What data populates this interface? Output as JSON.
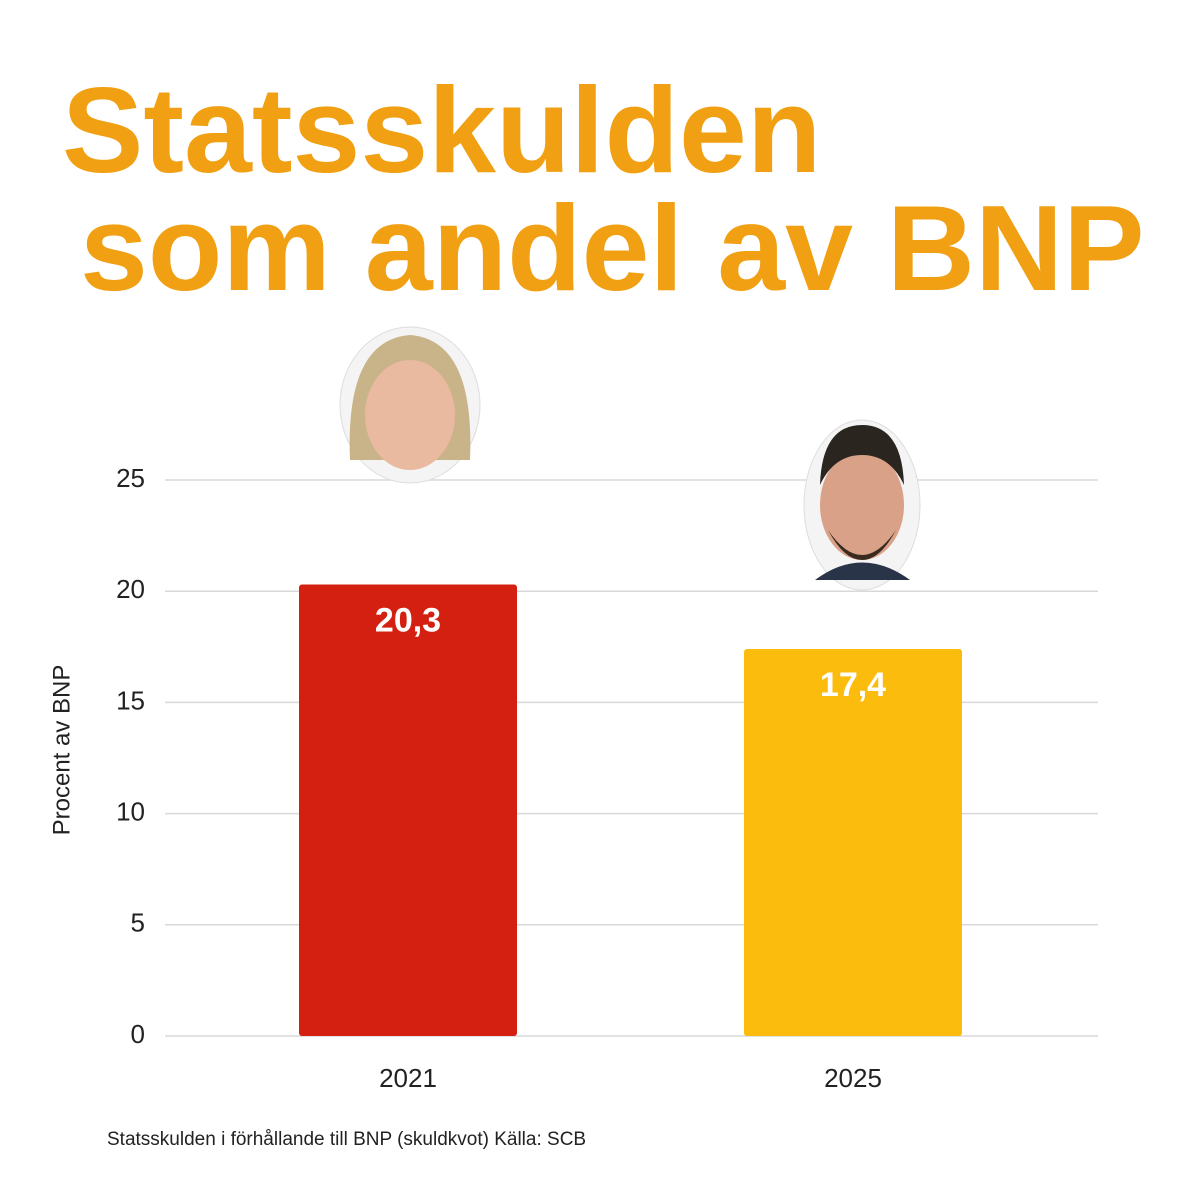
{
  "chart_data": {
    "type": "bar",
    "title": [
      "Statsskulden",
      "som andel av BNP"
    ],
    "y_label": "Procent av BNP",
    "footnote": "Statsskulden i förhållande till BNP (skuldkvot) Källa: SCB",
    "categories": [
      "2021",
      "2025"
    ],
    "values": [
      20.3,
      17.4
    ],
    "value_labels": [
      "20,3",
      "17,4"
    ],
    "colors": [
      "#d42010",
      "#fbbc0e"
    ],
    "ylim": [
      0,
      25
    ],
    "yticks": [
      0,
      5,
      10,
      15,
      20,
      25
    ],
    "grid": true
  }
}
